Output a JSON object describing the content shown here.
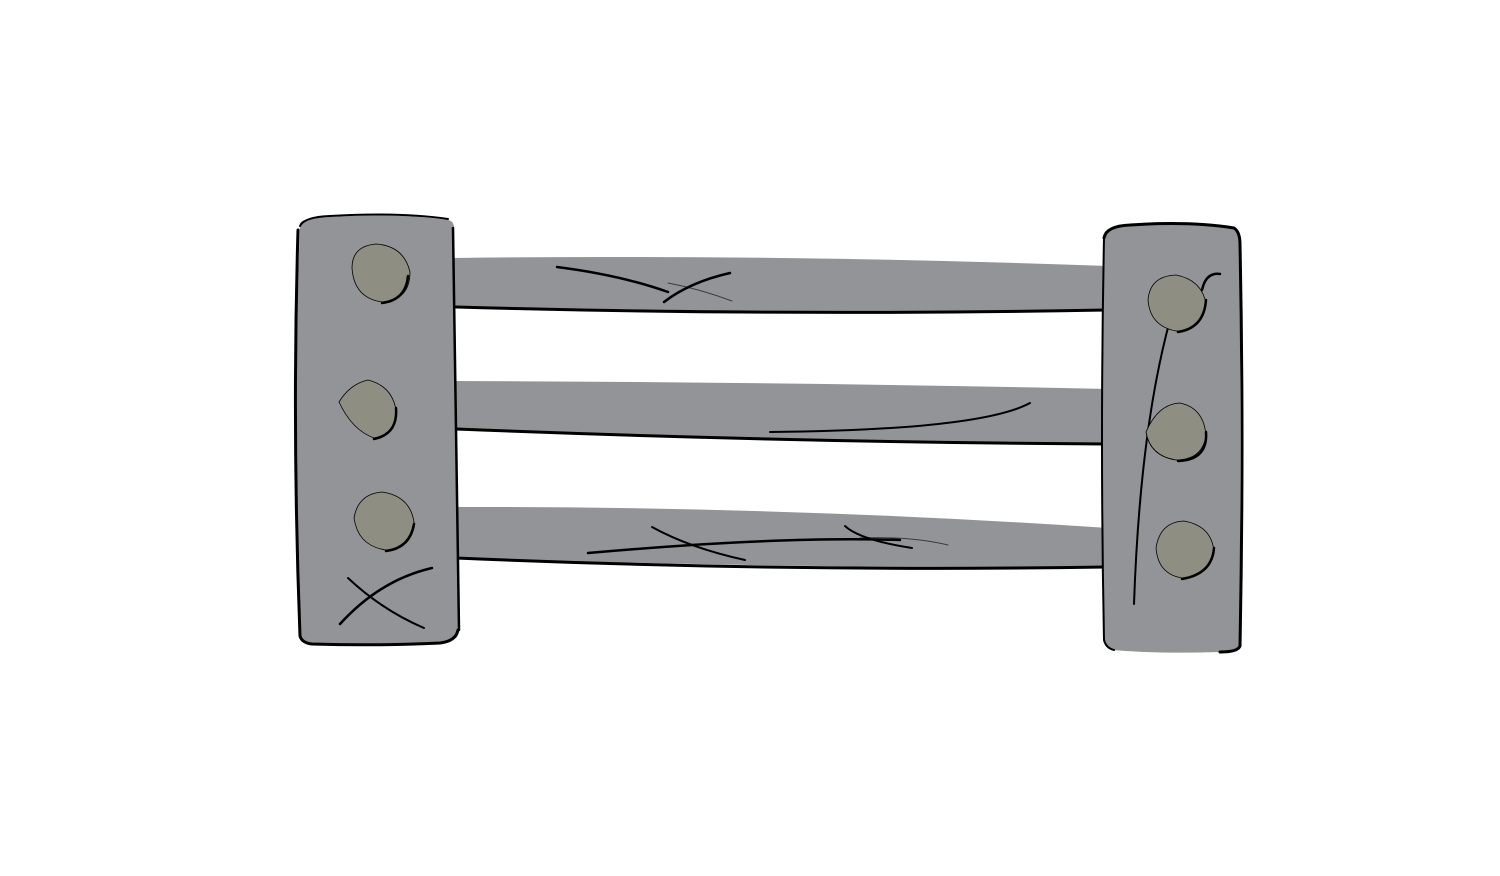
{
  "illustration": {
    "subject": "fence",
    "rail_count": 3,
    "post_count": 2,
    "nails_per_post": 3
  },
  "colors": {
    "background": "#ffffff",
    "wood": "#939497",
    "nail": "#8e8e83",
    "outline": "#000000"
  }
}
